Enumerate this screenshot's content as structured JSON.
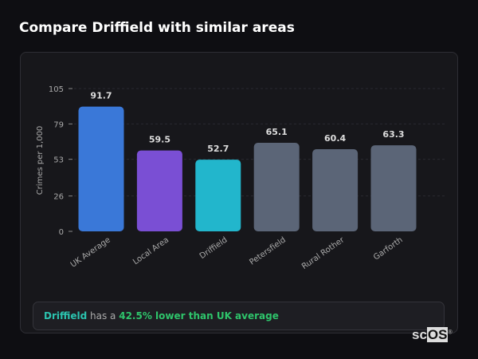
{
  "header": {
    "title": "Compare Driffield with similar areas"
  },
  "chart_data": {
    "type": "bar",
    "categories": [
      "UK Average",
      "Local Area",
      "Driffield",
      "Petersfield",
      "Rural Rother",
      "Garforth"
    ],
    "values": [
      91.7,
      59.5,
      52.7,
      65.1,
      60.4,
      63.3
    ],
    "value_labels": [
      "91.7",
      "59.5",
      "52.7",
      "65.1",
      "60.4",
      "63.3"
    ],
    "colors": [
      "#3a78d8",
      "#7a4fd4",
      "#22b6cc",
      "#5b6577",
      "#5b6577",
      "#5b6577"
    ],
    "ylabel": "Crimes per 1,000",
    "yticks": [
      0,
      26,
      53,
      79,
      105
    ],
    "ylim": [
      0,
      105
    ],
    "grid": true,
    "legend": "none"
  },
  "summary": {
    "area": "Driffield",
    "middle": " has a ",
    "stat": "42.5% lower than UK average",
    "area_color": "#2bc4b0",
    "stat_color": "#2ec46b"
  },
  "logo": {
    "text_a": "sc",
    "text_b": "OS",
    "mark": "®"
  }
}
